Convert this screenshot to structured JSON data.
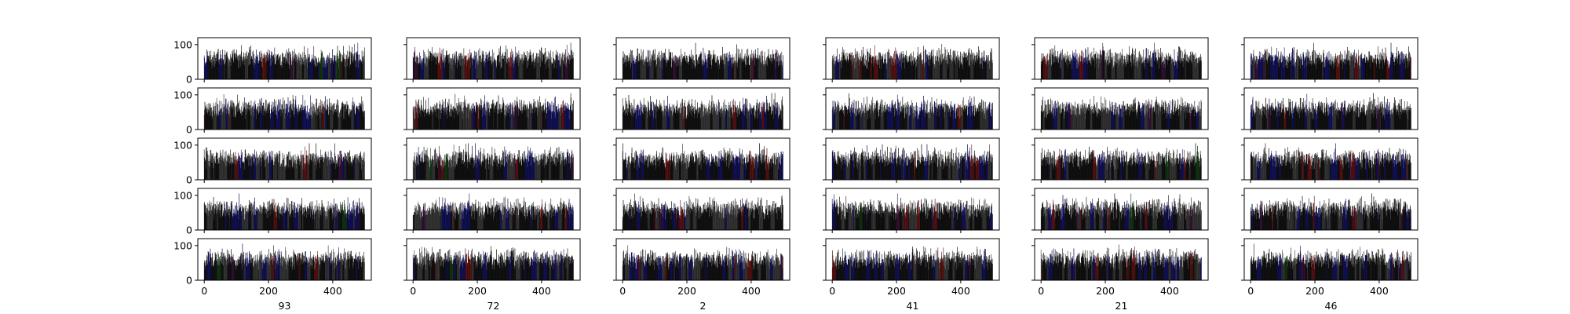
{
  "chart_data": {
    "type": "bar",
    "layout": {
      "rows": 5,
      "columns": 6
    },
    "column_labels": [
      "93",
      "72",
      "2",
      "41",
      "21",
      "46"
    ],
    "x_ticks": [
      0,
      200,
      400
    ],
    "y_ticks": [
      0,
      100
    ],
    "xlim": [
      -20,
      520
    ],
    "ylim": [
      0,
      120
    ],
    "bars_per_panel": 500,
    "value_range_approx": [
      30,
      105
    ],
    "typical_value": 60,
    "bar_colors": [
      "#000000",
      "#808080",
      "#0000ff",
      "#ff0000",
      "#800080",
      "#008000"
    ],
    "color_share_approx": [
      0.5,
      0.25,
      0.17,
      0.05,
      0.02,
      0.01
    ],
    "bar_edge_color": "#000000",
    "grid": false,
    "legend": "none"
  }
}
